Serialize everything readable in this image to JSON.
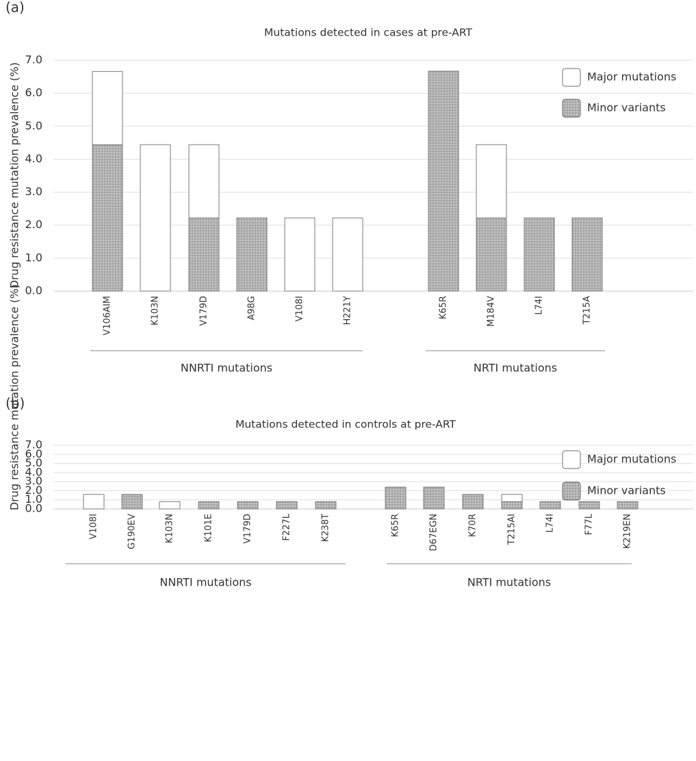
{
  "chart_data": [
    {
      "type": "bar",
      "stacked": true,
      "panel_label": "(a)",
      "title": "Mutations detected in cases at pre-ART",
      "ylabel": "Drug resistance mutation prevalence (%)",
      "ylim": [
        0,
        7
      ],
      "yticks": [
        "0.0",
        "1.0",
        "2.0",
        "3.0",
        "4.0",
        "5.0",
        "6.0",
        "7.0"
      ],
      "grid": true,
      "legend_position": "top-right",
      "groups": [
        {
          "label": "NNRTI mutations",
          "categories": [
            "V106AIM",
            "K103N",
            "V179D",
            "A98G",
            "V108I",
            "H221Y"
          ]
        },
        {
          "label": "NRTI mutations",
          "categories": [
            "K65R",
            "M184V",
            "L74I",
            "T215A"
          ]
        }
      ],
      "categories": [
        "V106AIM",
        "K103N",
        "V179D",
        "A98G",
        "V108I",
        "H221Y",
        "K65R",
        "M184V",
        "L74I",
        "T215A"
      ],
      "series": [
        {
          "name": "Minor variants",
          "color": "#b8b8b8",
          "pattern": "dotted",
          "values": [
            4.44,
            0,
            2.22,
            2.22,
            0,
            0,
            6.67,
            2.22,
            2.22,
            2.22
          ]
        },
        {
          "name": "Major mutations",
          "color": "#ffffff",
          "values": [
            2.22,
            4.44,
            2.22,
            0,
            2.22,
            2.22,
            0,
            2.22,
            0,
            0
          ]
        }
      ]
    },
    {
      "type": "bar",
      "stacked": true,
      "panel_label": "(b)",
      "title": "Mutations detected in controls at pre-ART",
      "ylabel": "Drug resistance mutation prevalence (%)",
      "ylim": [
        0,
        7
      ],
      "yticks": [
        "0.0",
        "1.0",
        "2.0",
        "3.0",
        "4.0",
        "5.0",
        "6.0",
        "7.0"
      ],
      "grid": true,
      "legend_position": "top-right",
      "groups": [
        {
          "label": "NNRTI mutations",
          "categories": [
            "V108I",
            "G190EV",
            "K103N",
            "K101E",
            "V179D",
            "F227L",
            "K238T"
          ]
        },
        {
          "label": "NRTI mutations",
          "categories": [
            "K65R",
            "D67EGN",
            "K70R",
            "T215AI",
            "L74I",
            "F77L",
            "K219EN"
          ]
        }
      ],
      "categories": [
        "V108I",
        "G190EV",
        "K103N",
        "K101E",
        "V179D",
        "F227L",
        "K238T",
        "K65R",
        "D67EGN",
        "K70R",
        "T215AI",
        "L74I",
        "F77L",
        "K219EN"
      ],
      "series": [
        {
          "name": "Minor variants",
          "color": "#b8b8b8",
          "pattern": "dotted",
          "values": [
            0,
            1.6,
            0,
            0.8,
            0.8,
            0.8,
            0.8,
            2.4,
            2.4,
            1.6,
            0.8,
            0.8,
            0.8,
            0.8
          ]
        },
        {
          "name": "Major mutations",
          "color": "#ffffff",
          "values": [
            1.6,
            0,
            0.8,
            0,
            0,
            0,
            0,
            0,
            0,
            0,
            0.8,
            0,
            0,
            0
          ]
        }
      ]
    }
  ]
}
